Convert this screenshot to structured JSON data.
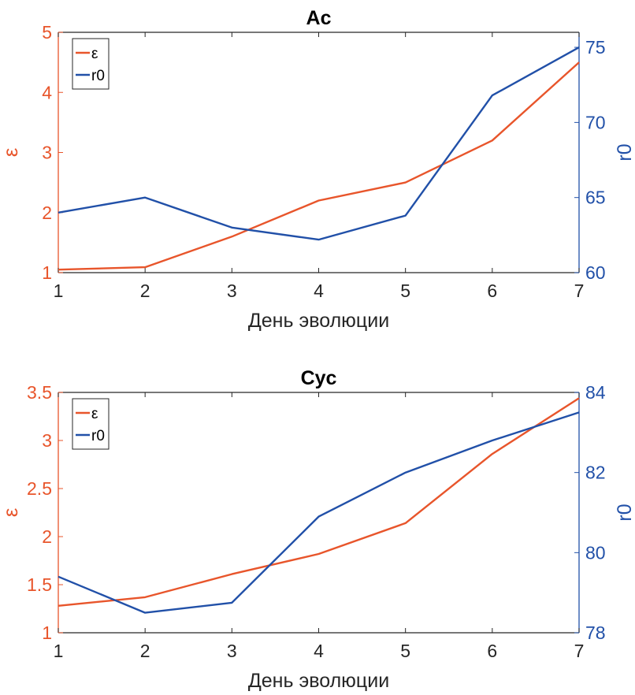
{
  "colors": {
    "eps": "#E8552B",
    "r0": "#2150A8",
    "axis": "#262626"
  },
  "chart_data": [
    {
      "type": "line",
      "title": "Ac",
      "xlabel": "День эволюции",
      "ylabel_left": "ε",
      "ylabel_right": "r0",
      "x": [
        1,
        2,
        3,
        4,
        5,
        6,
        7
      ],
      "xlim": [
        1,
        7
      ],
      "xticks": [
        "1",
        "2",
        "3",
        "4",
        "5",
        "6",
        "7"
      ],
      "ylim_left": [
        1,
        5
      ],
      "yticks_left": [
        "1",
        "2",
        "3",
        "4",
        "5"
      ],
      "ylim_right": [
        60,
        76
      ],
      "yticks_right": [
        "60",
        "65",
        "70",
        "75"
      ],
      "grid": false,
      "legend_position": "top-left",
      "series": [
        {
          "name": "ε",
          "axis": "left",
          "values": [
            1.05,
            1.09,
            1.6,
            2.2,
            2.5,
            3.2,
            4.5
          ]
        },
        {
          "name": "r0",
          "axis": "right",
          "values": [
            64.0,
            65.0,
            63.0,
            62.2,
            63.8,
            71.8,
            75.0
          ]
        }
      ]
    },
    {
      "type": "line",
      "title": "Cyc",
      "xlabel": "День эволюции",
      "ylabel_left": "ε",
      "ylabel_right": "r0",
      "x": [
        1,
        2,
        3,
        4,
        5,
        6,
        7
      ],
      "xlim": [
        1,
        7
      ],
      "xticks": [
        "1",
        "2",
        "3",
        "4",
        "5",
        "6",
        "7"
      ],
      "ylim_left": [
        1,
        3.5
      ],
      "yticks_left": [
        "1",
        "1.5",
        "2",
        "2.5",
        "3",
        "3.5"
      ],
      "ylim_right": [
        78,
        84
      ],
      "yticks_right": [
        "78",
        "80",
        "82",
        "84"
      ],
      "grid": false,
      "legend_position": "top-left",
      "series": [
        {
          "name": "ε",
          "axis": "left",
          "values": [
            1.28,
            1.37,
            1.61,
            1.82,
            2.14,
            2.86,
            3.44
          ]
        },
        {
          "name": "r0",
          "axis": "right",
          "values": [
            79.4,
            78.5,
            78.75,
            80.9,
            82.0,
            82.8,
            83.5
          ]
        }
      ]
    }
  ]
}
